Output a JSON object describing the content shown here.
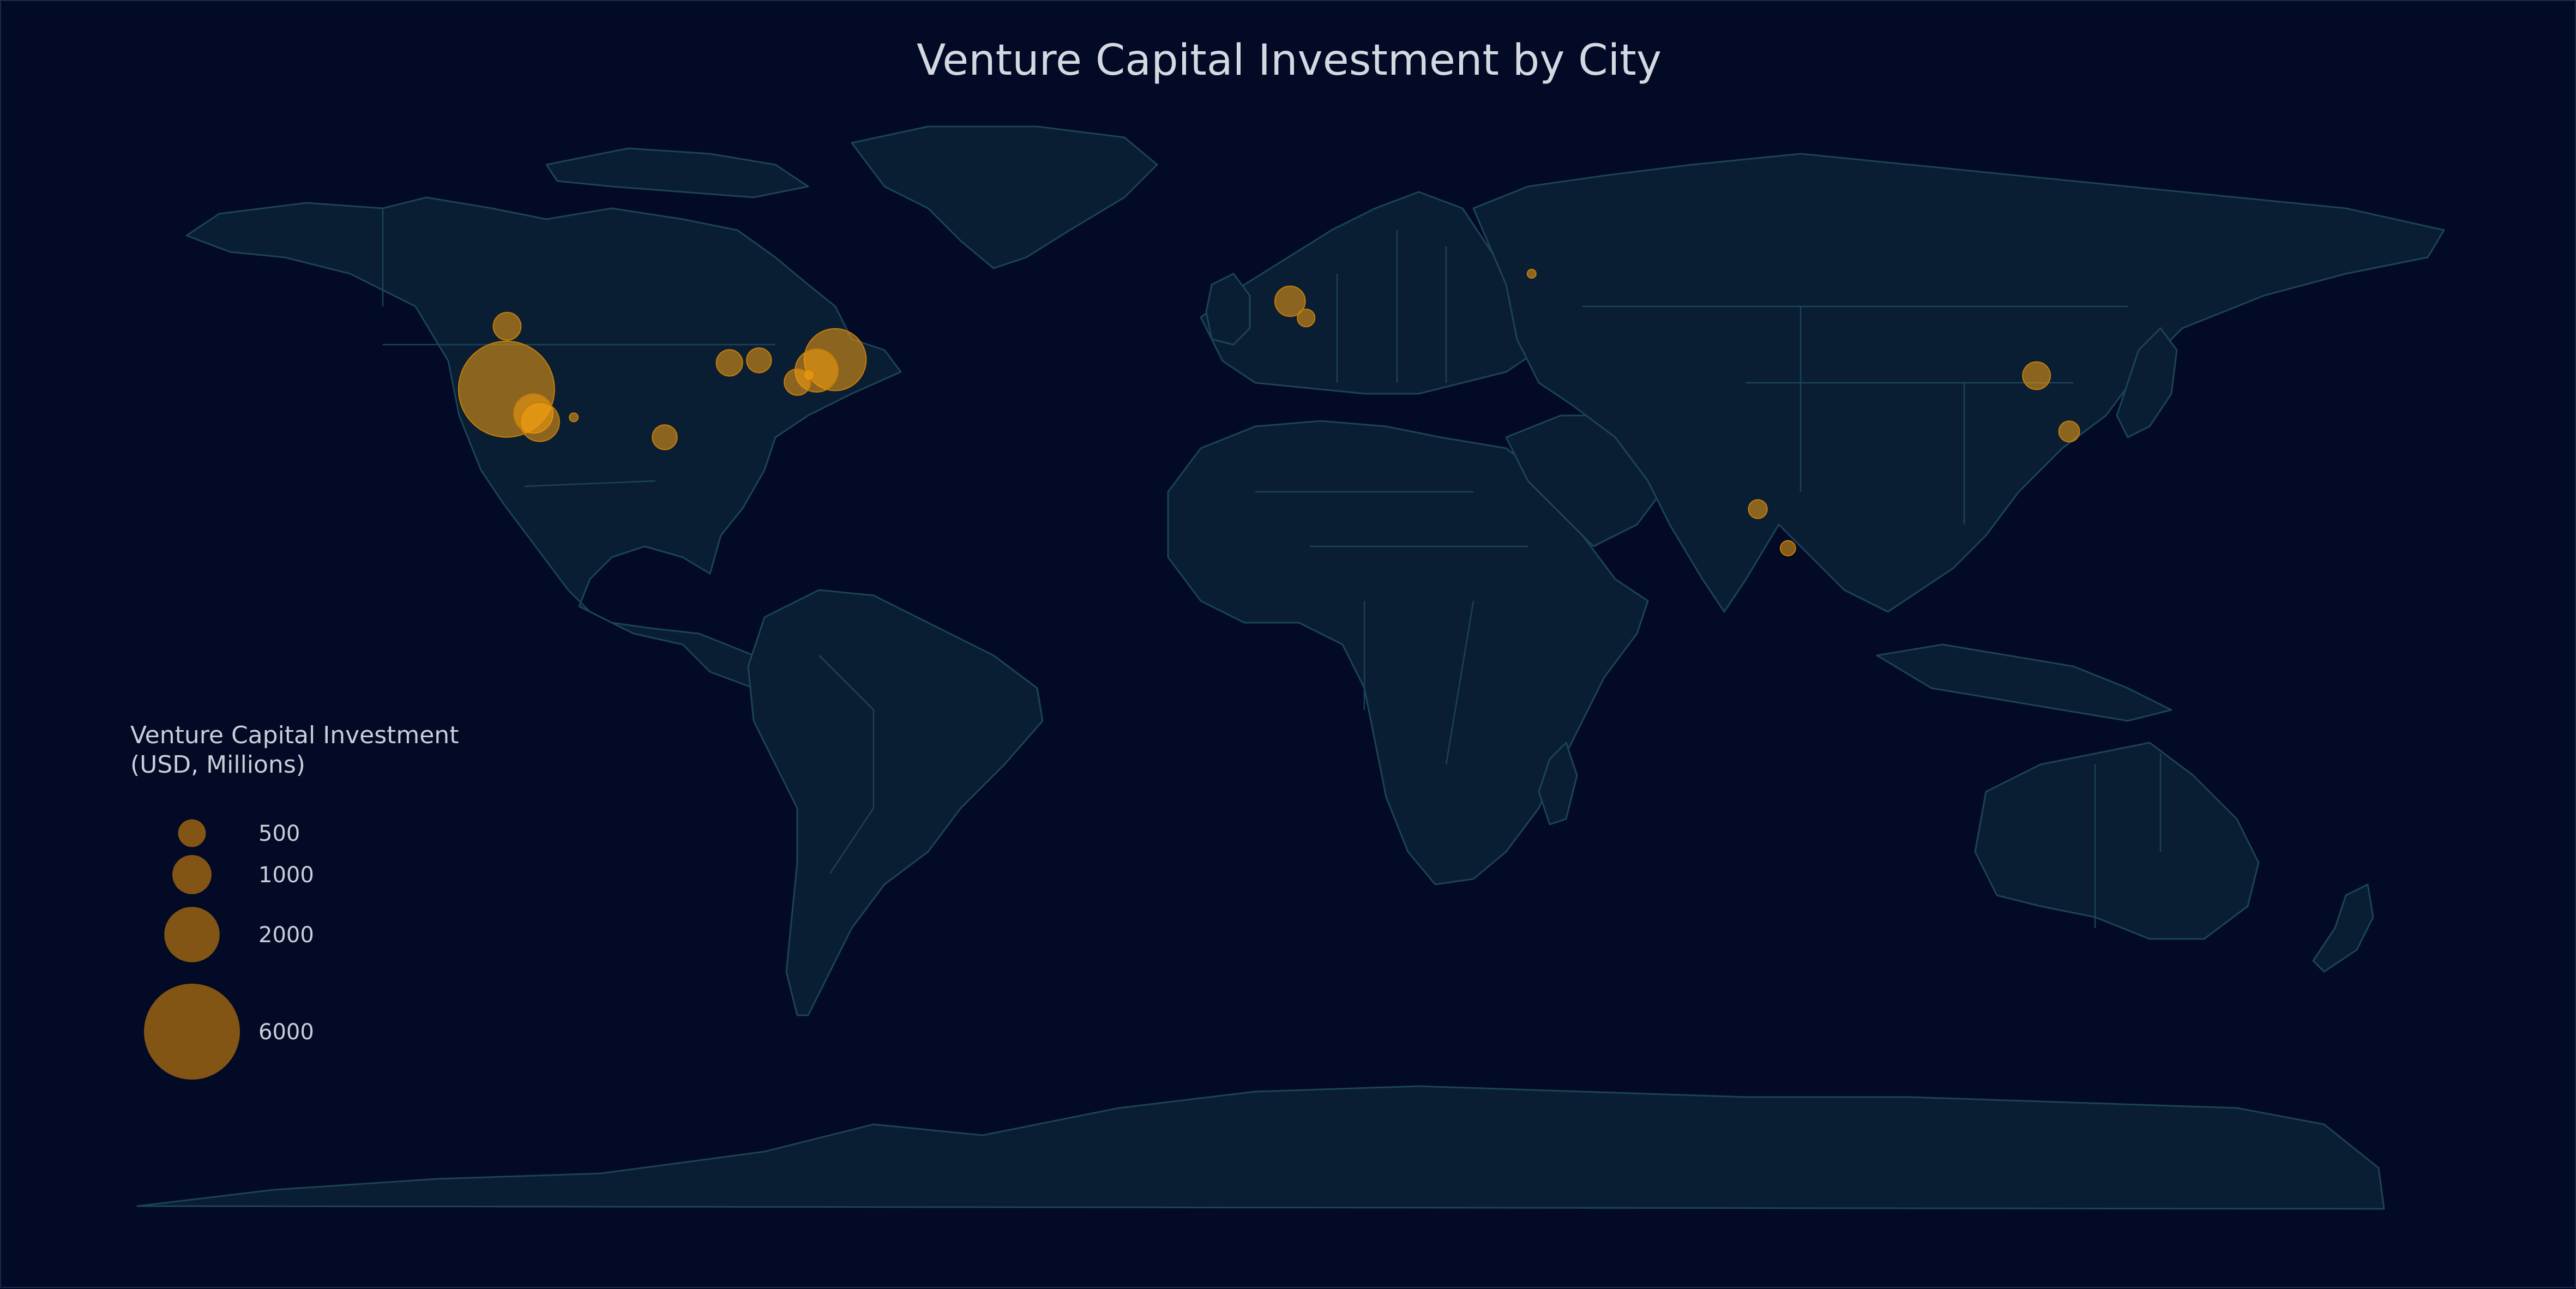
{
  "title": "Venture Capital Investment by City",
  "colors": {
    "background": "#020a26",
    "land": "#0a1e33",
    "land_border": "#1b4357",
    "bubble_fill": "#f5a00f",
    "bubble_stroke": "#c47c0b",
    "text": "#d4d8e1"
  },
  "legend": {
    "title_line1": "Venture Capital Investment",
    "title_line2": "(USD, Millions)",
    "placement": "left-middle",
    "entries": [
      {
        "value": 500,
        "label": "500"
      },
      {
        "value": 1000,
        "label": "1000"
      },
      {
        "value": 2000,
        "label": "2000"
      },
      {
        "value": 6000,
        "label": "6000"
      }
    ]
  },
  "chart_data": {
    "type": "scatter",
    "projection": "equirectangular",
    "size_encoding": "investment_usd_millions",
    "points": [
      {
        "lon": -122.4,
        "lat": 37.8,
        "value": 6000
      },
      {
        "lon": -118.2,
        "lat": 34.0,
        "value": 1000
      },
      {
        "lon": -117.2,
        "lat": 32.7,
        "value": 1000
      },
      {
        "lon": -122.3,
        "lat": 47.6,
        "value": 500
      },
      {
        "lon": -111.9,
        "lat": 33.4,
        "value": 30
      },
      {
        "lon": -97.7,
        "lat": 30.3,
        "value": 400
      },
      {
        "lon": -87.6,
        "lat": 41.9,
        "value": 450
      },
      {
        "lon": -83.0,
        "lat": 42.3,
        "value": 400
      },
      {
        "lon": -71.1,
        "lat": 42.4,
        "value": 2500
      },
      {
        "lon": -74.0,
        "lat": 40.7,
        "value": 1200
      },
      {
        "lon": -75.2,
        "lat": 40.0,
        "value": 80
      },
      {
        "lon": -77.0,
        "lat": 38.9,
        "value": 450
      },
      {
        "lon": -0.1,
        "lat": 51.5,
        "value": 600
      },
      {
        "lon": 2.4,
        "lat": 48.9,
        "value": 200
      },
      {
        "lon": 37.6,
        "lat": 55.8,
        "value": 10
      },
      {
        "lon": 116.4,
        "lat": 39.9,
        "value": 500
      },
      {
        "lon": 121.5,
        "lat": 31.2,
        "value": 280
      },
      {
        "lon": 72.9,
        "lat": 19.1,
        "value": 230
      },
      {
        "lon": 77.6,
        "lat": 13.0,
        "value": 150
      }
    ]
  }
}
